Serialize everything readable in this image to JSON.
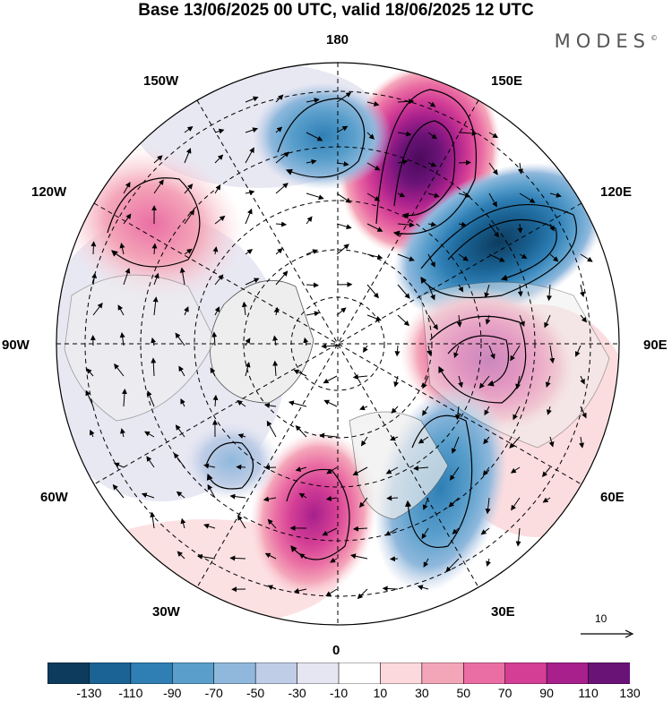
{
  "title": "Base 13/06/2025 00 UTC, valid 18/06/2025 12 UTC",
  "brand": "MODES",
  "brand_mark": "©",
  "longitude_labels": {
    "n180": "180",
    "w150": "150W",
    "e150": "150E",
    "w120": "120W",
    "e120": "120E",
    "w90": "90W",
    "e90": "90E",
    "w60": "60W",
    "e60": "60E",
    "w30": "30W",
    "e30": "30E",
    "s0": "0"
  },
  "vector_reference": "10",
  "colorbar": {
    "ticks": [
      "-130",
      "-110",
      "-90",
      "-70",
      "-50",
      "-30",
      "-10",
      "10",
      "30",
      "50",
      "70",
      "90",
      "110",
      "130"
    ],
    "colors": [
      "#0d3b5e",
      "#1a6394",
      "#2f7fb5",
      "#5a9fcc",
      "#8fb8dc",
      "#bfcde6",
      "#e6e6f2",
      "#ffffff",
      "#fbd9dc",
      "#f4a6b9",
      "#ea6ea4",
      "#d43e95",
      "#a7208c",
      "#6a1377"
    ]
  },
  "anomalies": [
    {
      "kind": "positive",
      "strength": "strong",
      "region": "near 150E-165E"
    },
    {
      "kind": "negative",
      "strength": "strong",
      "region": "near 120E"
    },
    {
      "kind": "positive",
      "strength": "moderate",
      "region": "near 90E"
    },
    {
      "kind": "negative",
      "strength": "moderate",
      "region": "near 30E-45E"
    },
    {
      "kind": "positive",
      "strength": "moderate",
      "region": "near 0-20W"
    },
    {
      "kind": "negative",
      "strength": "weak",
      "region": "near 45W"
    },
    {
      "kind": "negative",
      "strength": "moderate",
      "region": "near 160W"
    },
    {
      "kind": "positive",
      "strength": "weak",
      "region": "near 120W"
    }
  ]
}
